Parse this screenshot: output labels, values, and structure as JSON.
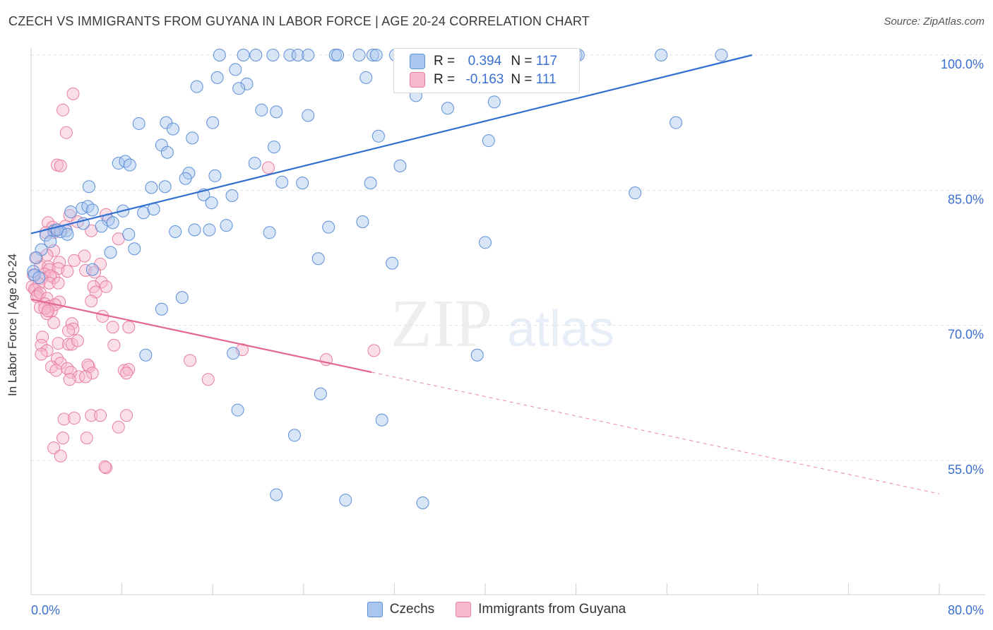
{
  "title": "CZECH VS IMMIGRANTS FROM GUYANA IN LABOR FORCE | AGE 20-24 CORRELATION CHART",
  "source": "Source: ZipAtlas.com",
  "watermark": {
    "zip": "ZIP",
    "atlas": "atlas"
  },
  "colors": {
    "blue_fill": "#a9c6ee",
    "blue_stroke": "#5d8fd8",
    "blue_line": "#2f6fd0",
    "pink_fill": "#f7b9cb",
    "pink_stroke": "#e87fa1",
    "pink_line": "#e5668f",
    "tick_label": "#3b6fd0",
    "grid": "#e3e3e3"
  },
  "stats": {
    "r_label": "R =",
    "n_label": "N =",
    "rows": [
      {
        "series": "Czechs",
        "r": "0.394",
        "n": "117"
      },
      {
        "series": "Immigrants from Guyana",
        "r": "-0.163",
        "n": "111"
      }
    ]
  },
  "chart_data": {
    "type": "scatter",
    "title": "CZECH VS IMMIGRANTS FROM GUYANA IN LABOR FORCE | AGE 20-24 CORRELATION CHART",
    "xlabel": "",
    "ylabel": "In Labor Force | Age 20-24",
    "xlim": [
      0,
      80
    ],
    "ylim": [
      41,
      101.5
    ],
    "x_tick_labels": [
      "0.0%",
      "80.0%"
    ],
    "y_ticks": [
      55,
      70,
      85,
      100
    ],
    "y_tick_labels": [
      "55.0%",
      "70.0%",
      "85.0%",
      "100.0%"
    ],
    "grid": "horizontal dashed",
    "legend": "bottom-center",
    "series": [
      {
        "name": "Czechs",
        "trend": {
          "x0": 0,
          "y0": 80.2,
          "x1": 63.5,
          "y1": 100
        },
        "points": [
          [
            16.6,
            100
          ],
          [
            18.7,
            100
          ],
          [
            19.8,
            100
          ],
          [
            21.3,
            100
          ],
          [
            22.8,
            100
          ],
          [
            23.5,
            100
          ],
          [
            24.4,
            100
          ],
          [
            26.8,
            100
          ],
          [
            27.0,
            100
          ],
          [
            28.9,
            100
          ],
          [
            30.1,
            100
          ],
          [
            30.4,
            100
          ],
          [
            32.1,
            100
          ],
          [
            35.0,
            100
          ],
          [
            36.3,
            100
          ],
          [
            36.8,
            100
          ],
          [
            38.0,
            100
          ],
          [
            38.6,
            100
          ],
          [
            43.7,
            100
          ],
          [
            44.2,
            100
          ],
          [
            48.0,
            100
          ],
          [
            48.2,
            100
          ],
          [
            55.5,
            100
          ],
          [
            60.8,
            100
          ],
          [
            18.0,
            98.4
          ],
          [
            16.4,
            97.5
          ],
          [
            19.0,
            96.8
          ],
          [
            14.6,
            96.5
          ],
          [
            18.3,
            96.3
          ],
          [
            29.5,
            97.5
          ],
          [
            33.9,
            95.5
          ],
          [
            16.0,
            92.5
          ],
          [
            20.3,
            93.9
          ],
          [
            21.6,
            93.7
          ],
          [
            24.4,
            93.3
          ],
          [
            36.7,
            94.1
          ],
          [
            40.8,
            94.8
          ],
          [
            9.5,
            92.4
          ],
          [
            11.9,
            92.5
          ],
          [
            12.5,
            91.8
          ],
          [
            14.2,
            90.8
          ],
          [
            30.6,
            91.0
          ],
          [
            40.3,
            90.5
          ],
          [
            56.8,
            92.5
          ],
          [
            11.5,
            90.0
          ],
          [
            12.0,
            89.2
          ],
          [
            21.4,
            89.8
          ],
          [
            7.7,
            88.0
          ],
          [
            8.3,
            88.2
          ],
          [
            8.7,
            87.8
          ],
          [
            13.9,
            86.9
          ],
          [
            16.2,
            86.6
          ],
          [
            19.7,
            88.0
          ],
          [
            32.5,
            87.7
          ],
          [
            13.6,
            86.3
          ],
          [
            22.1,
            85.9
          ],
          [
            23.9,
            85.8
          ],
          [
            29.9,
            85.8
          ],
          [
            10.6,
            85.3
          ],
          [
            11.8,
            85.4
          ],
          [
            5.1,
            85.4
          ],
          [
            15.2,
            84.5
          ],
          [
            17.7,
            84.4
          ],
          [
            53.2,
            84.7
          ],
          [
            15.9,
            83.6
          ],
          [
            4.5,
            83.0
          ],
          [
            5.0,
            83.2
          ],
          [
            5.4,
            82.8
          ],
          [
            8.1,
            82.7
          ],
          [
            9.9,
            82.5
          ],
          [
            10.8,
            82.9
          ],
          [
            6.8,
            81.7
          ],
          [
            3.5,
            82.6
          ],
          [
            4.6,
            81.3
          ],
          [
            6.2,
            81.0
          ],
          [
            7.2,
            81.4
          ],
          [
            14.4,
            80.6
          ],
          [
            12.7,
            80.4
          ],
          [
            15.7,
            80.6
          ],
          [
            17.2,
            81.1
          ],
          [
            21.0,
            80.3
          ],
          [
            26.2,
            80.9
          ],
          [
            29.2,
            81.5
          ],
          [
            2.0,
            80.5
          ],
          [
            3.1,
            80.5
          ],
          [
            2.6,
            80.4
          ],
          [
            3.2,
            80.1
          ],
          [
            1.3,
            80.0
          ],
          [
            8.6,
            80.1
          ],
          [
            2.3,
            80.6
          ],
          [
            1.7,
            79.3
          ],
          [
            0.9,
            78.4
          ],
          [
            9.1,
            78.5
          ],
          [
            7.0,
            78.1
          ],
          [
            0.4,
            77.5
          ],
          [
            0.2,
            76.0
          ],
          [
            25.3,
            77.4
          ],
          [
            31.8,
            76.9
          ],
          [
            40.0,
            79.2
          ],
          [
            0.3,
            75.6
          ],
          [
            0.7,
            75.3
          ],
          [
            5.4,
            76.2
          ],
          [
            13.3,
            73.1
          ],
          [
            11.5,
            71.8
          ],
          [
            10.1,
            66.7
          ],
          [
            17.8,
            66.9
          ],
          [
            39.3,
            66.7
          ],
          [
            25.5,
            62.4
          ],
          [
            18.2,
            60.6
          ],
          [
            30.9,
            59.5
          ],
          [
            23.2,
            57.8
          ],
          [
            21.6,
            51.2
          ],
          [
            27.7,
            50.6
          ],
          [
            34.5,
            50.3
          ]
        ]
      },
      {
        "name": "Immigrants from Guyana",
        "trend": {
          "x0": 0,
          "y0": 72.9,
          "x1": 30,
          "y1": 64.8
        },
        "dashed_extension": {
          "x0": 30,
          "y0": 64.8,
          "x1": 80,
          "y1": 51.3
        },
        "points": [
          [
            3.7,
            95.7
          ],
          [
            2.8,
            93.9
          ],
          [
            3.1,
            91.4
          ],
          [
            2.3,
            87.8
          ],
          [
            2.6,
            87.7
          ],
          [
            20.9,
            87.5
          ],
          [
            3.4,
            82.2
          ],
          [
            6.6,
            82.3
          ],
          [
            4.1,
            81.5
          ],
          [
            1.5,
            81.4
          ],
          [
            1.9,
            80.9
          ],
          [
            2.0,
            80.3
          ],
          [
            5.3,
            80.5
          ],
          [
            2.2,
            80.6
          ],
          [
            1.3,
            80.3
          ],
          [
            3.0,
            81.0
          ],
          [
            7.7,
            79.6
          ],
          [
            2.0,
            78.3
          ],
          [
            0.5,
            77.5
          ],
          [
            1.4,
            77.8
          ],
          [
            4.7,
            77.7
          ],
          [
            2.5,
            77.0
          ],
          [
            3.8,
            77.2
          ],
          [
            6.1,
            76.8
          ],
          [
            0.8,
            76.5
          ],
          [
            1.5,
            76.5
          ],
          [
            1.6,
            76.2
          ],
          [
            2.4,
            76.3
          ],
          [
            3.2,
            76.0
          ],
          [
            1.2,
            75.7
          ],
          [
            2.0,
            75.3
          ],
          [
            0.2,
            75.6
          ],
          [
            1.7,
            75.5
          ],
          [
            4.8,
            76.1
          ],
          [
            5.6,
            75.9
          ],
          [
            6.2,
            74.8
          ],
          [
            0.9,
            75.2
          ],
          [
            1.6,
            74.7
          ],
          [
            0.1,
            74.3
          ],
          [
            0.4,
            73.9
          ],
          [
            0.7,
            74.6
          ],
          [
            0.3,
            74.0
          ],
          [
            0.6,
            73.4
          ],
          [
            2.4,
            74.7
          ],
          [
            5.5,
            74.3
          ],
          [
            5.7,
            73.7
          ],
          [
            6.6,
            74.3
          ],
          [
            0.5,
            73.2
          ],
          [
            0.8,
            73.6
          ],
          [
            1.4,
            73.0
          ],
          [
            2.5,
            72.6
          ],
          [
            1.2,
            72.4
          ],
          [
            1.6,
            72.1
          ],
          [
            0.8,
            72.0
          ],
          [
            1.8,
            71.6
          ],
          [
            2.1,
            72.3
          ],
          [
            1.4,
            71.3
          ],
          [
            5.3,
            72.7
          ],
          [
            6.3,
            71.0
          ],
          [
            1.2,
            71.9
          ],
          [
            1.5,
            71.6
          ],
          [
            2.0,
            70.3
          ],
          [
            3.6,
            70.2
          ],
          [
            3.7,
            69.6
          ],
          [
            3.3,
            69.4
          ],
          [
            7.2,
            69.8
          ],
          [
            8.6,
            69.8
          ],
          [
            1.0,
            68.7
          ],
          [
            2.4,
            68.0
          ],
          [
            3.3,
            67.9
          ],
          [
            3.6,
            67.9
          ],
          [
            4.1,
            68.3
          ],
          [
            7.3,
            67.8
          ],
          [
            18.6,
            67.3
          ],
          [
            0.9,
            67.8
          ],
          [
            1.4,
            67.2
          ],
          [
            0.9,
            66.8
          ],
          [
            2.3,
            66.3
          ],
          [
            14.0,
            66.1
          ],
          [
            26.0,
            66.2
          ],
          [
            30.2,
            67.2
          ],
          [
            2.6,
            65.8
          ],
          [
            5.1,
            65.4
          ],
          [
            1.8,
            65.4
          ],
          [
            2.2,
            65.0
          ],
          [
            3.2,
            65.2
          ],
          [
            3.5,
            64.8
          ],
          [
            5.0,
            65.6
          ],
          [
            8.2,
            65.0
          ],
          [
            8.6,
            65.1
          ],
          [
            8.4,
            64.7
          ],
          [
            4.2,
            64.3
          ],
          [
            5.4,
            64.7
          ],
          [
            3.4,
            64.0
          ],
          [
            4.8,
            64.3
          ],
          [
            15.6,
            64.0
          ],
          [
            5.3,
            60.0
          ],
          [
            6.1,
            60.0
          ],
          [
            8.4,
            60.0
          ],
          [
            2.9,
            59.6
          ],
          [
            3.8,
            59.7
          ],
          [
            7.7,
            58.7
          ],
          [
            2.8,
            57.5
          ],
          [
            4.9,
            57.5
          ],
          [
            2.0,
            56.4
          ],
          [
            2.6,
            55.5
          ],
          [
            6.6,
            54.2
          ],
          [
            6.5,
            54.3
          ]
        ]
      }
    ]
  },
  "legend": {
    "items": [
      "Czechs",
      "Immigrants from Guyana"
    ]
  }
}
